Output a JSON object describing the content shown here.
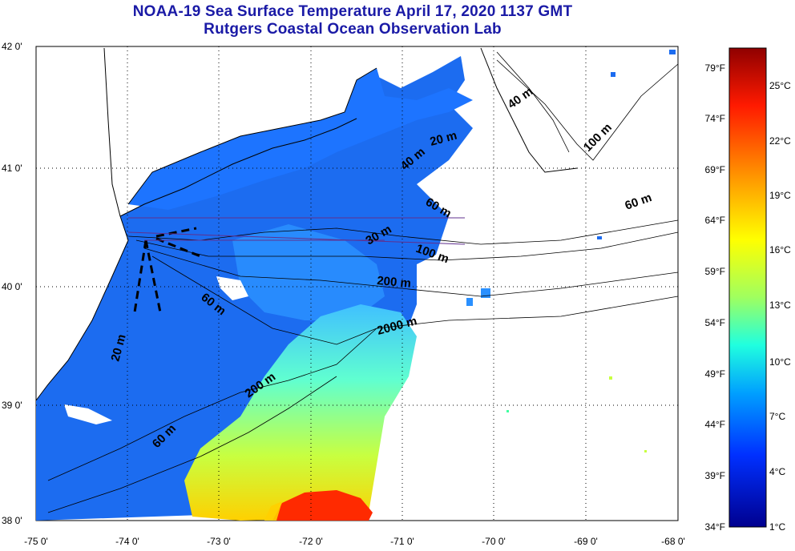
{
  "title": {
    "line1": "NOAA-19 Sea Surface Temperature April 17, 2020 1137 GMT",
    "line2": "Rutgers Coastal Ocean Observation Lab"
  },
  "map": {
    "lat_labels": [
      "42 0'",
      "41 0'",
      "40 0'",
      "39 0'",
      "38 0'"
    ],
    "lon_labels": [
      "-75 0'",
      "-74 0'",
      "-73 0'",
      "-72 0'",
      "-71 0'",
      "-70 0'",
      "-69 0'",
      "-68 0'"
    ],
    "lat_range": [
      38,
      42
    ],
    "lon_range": [
      -75,
      -68
    ],
    "land_color": "#ffffff",
    "grid": "dotted",
    "contour_labels": [
      "40 m",
      "100 m",
      "20 m",
      "40 m",
      "60 m",
      "60 m",
      "30 m",
      "100 m",
      "200 m",
      "60 m",
      "2000 m",
      "20 m",
      "200 m",
      "60 m"
    ]
  },
  "colorbar": {
    "fahrenheit_labels": [
      "79°F",
      "74°F",
      "69°F",
      "64°F",
      "59°F",
      "54°F",
      "49°F",
      "44°F",
      "39°F",
      "34°F"
    ],
    "celsius_labels": [
      "25°C",
      "22°C",
      "19°C",
      "16°C",
      "13°C",
      "10°C",
      "7°C",
      "4°C",
      "1°C"
    ],
    "range_c": [
      1,
      27
    ],
    "colors": [
      "#00008f",
      "#0000ff",
      "#0070ff",
      "#00dfff",
      "#50ffaf",
      "#bfff40",
      "#ffff00",
      "#ff9f00",
      "#ff3000",
      "#8f0000"
    ]
  }
}
